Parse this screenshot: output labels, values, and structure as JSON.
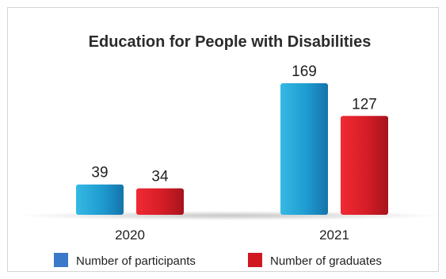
{
  "chart_data": {
    "type": "bar",
    "title": "Education for People with Disabilities",
    "categories": [
      "2020",
      "2021"
    ],
    "series": [
      {
        "name": "Number of participants",
        "values": [
          39,
          169
        ],
        "color": "#2aa6d6",
        "legend_color": "#3a78c9"
      },
      {
        "name": "Number of graduates",
        "values": [
          34,
          127
        ],
        "color": "#d81f2a",
        "legend_color": "#d01820"
      }
    ],
    "xlabel": "",
    "ylabel": "",
    "ylim": [
      0,
      169
    ],
    "grid": false,
    "legend": "bottom"
  }
}
